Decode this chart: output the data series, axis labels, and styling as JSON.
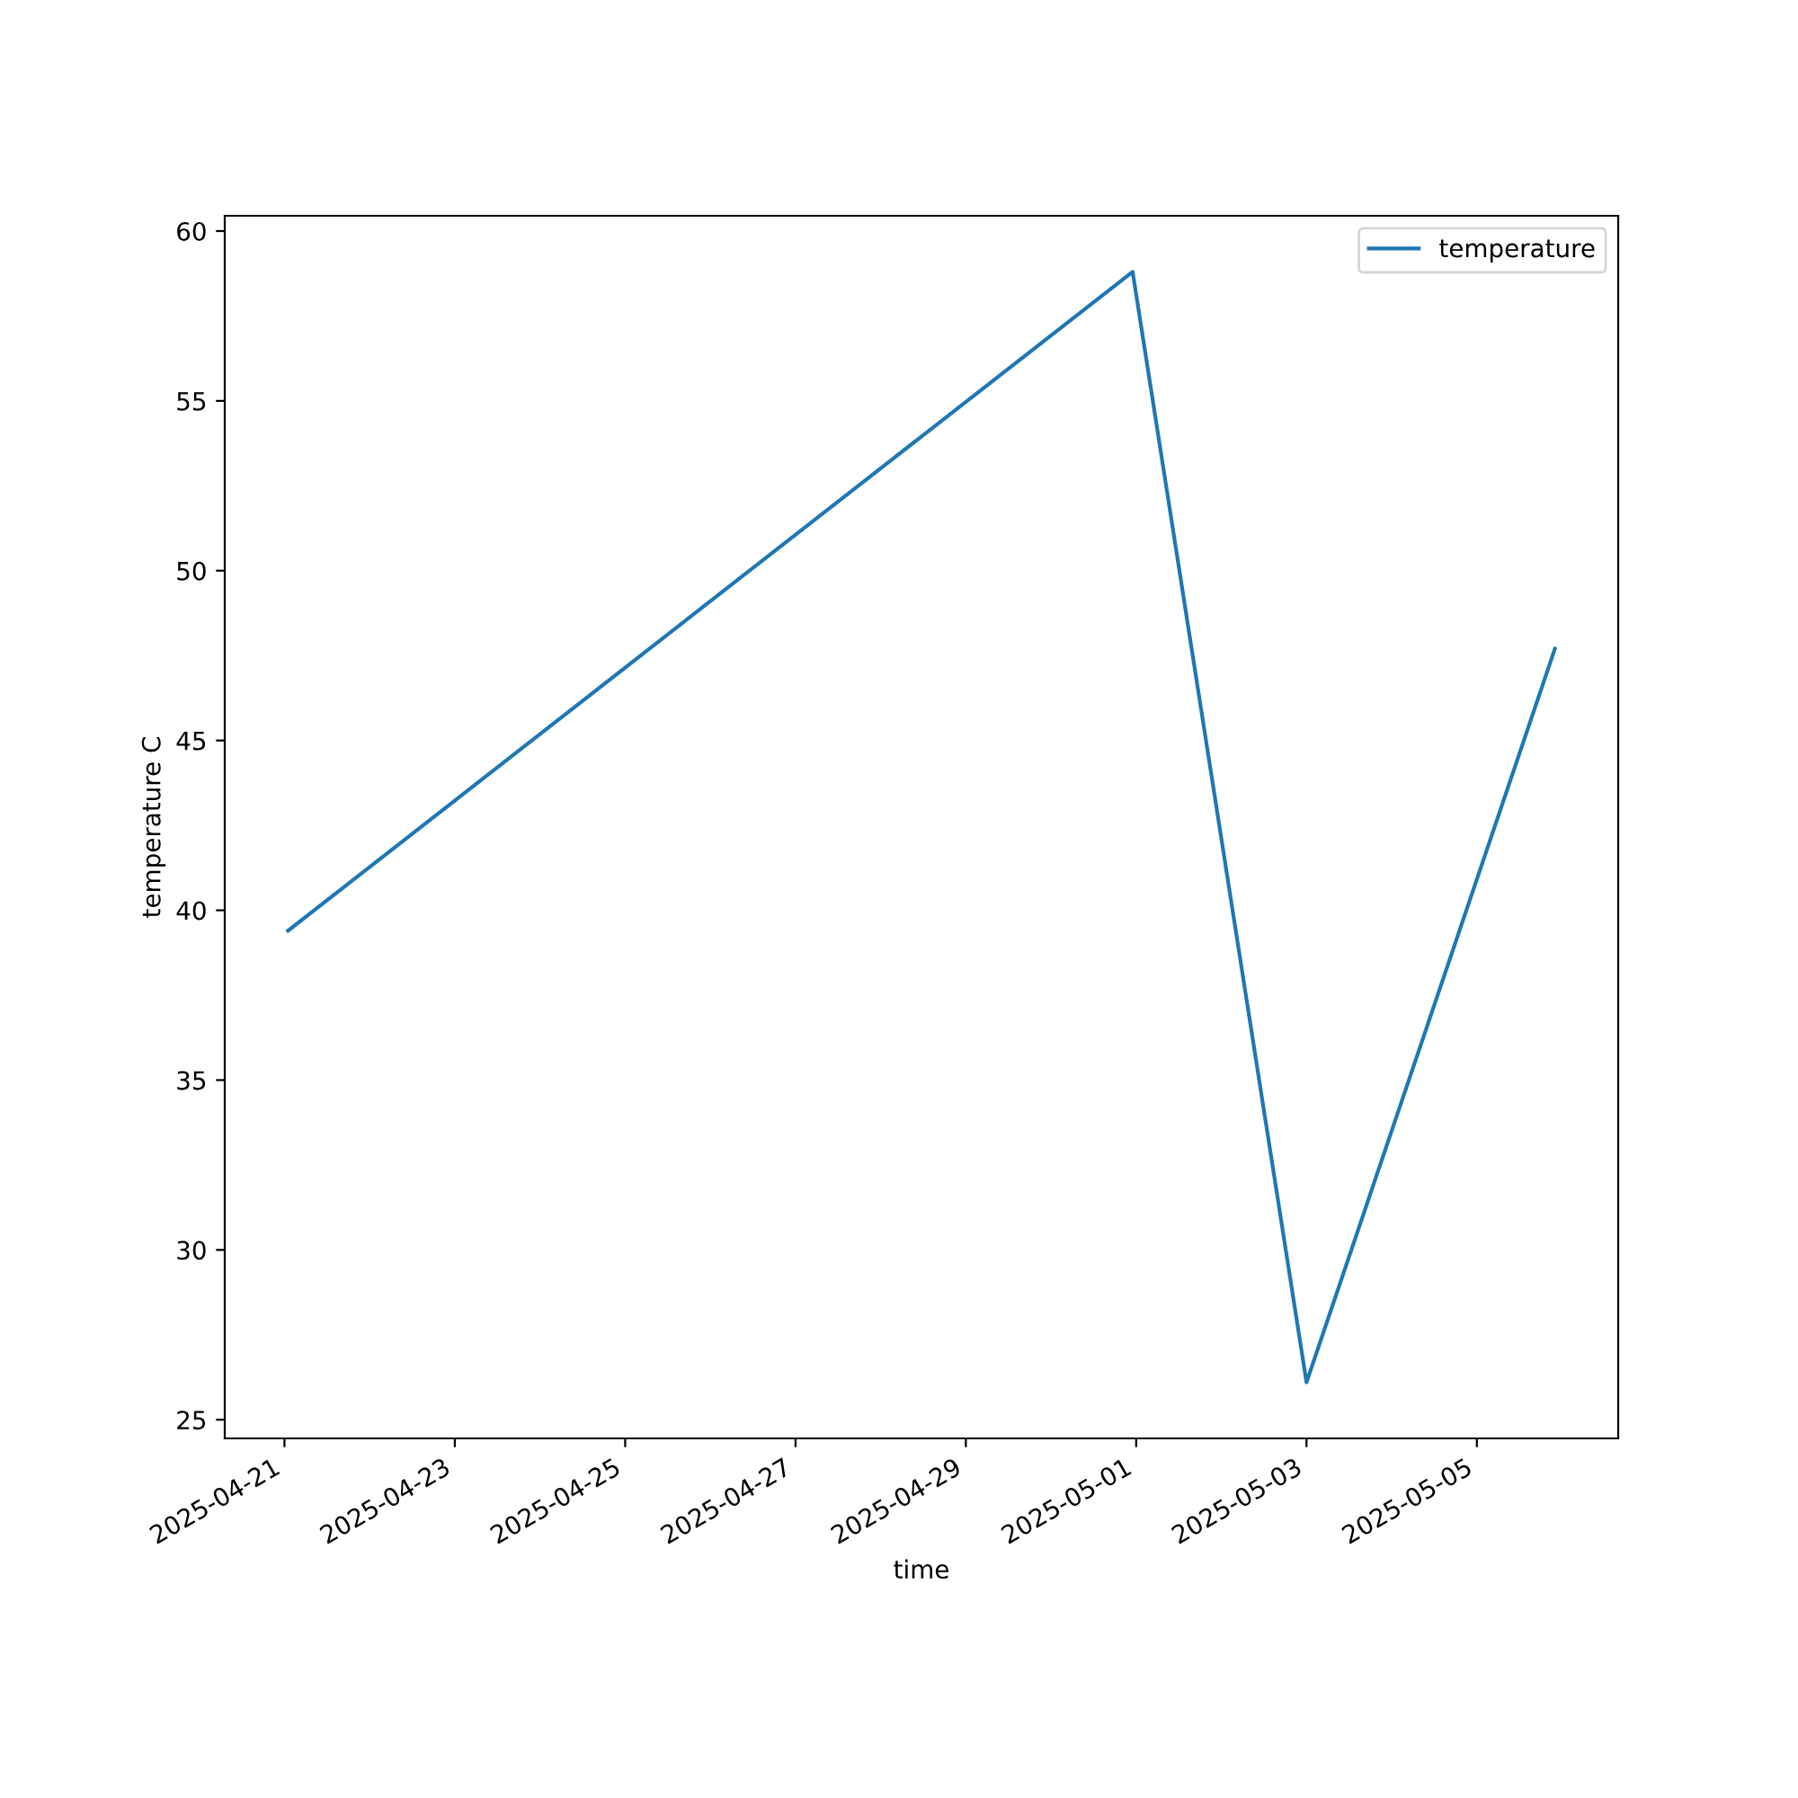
{
  "chart_data": {
    "type": "line",
    "xlabel": "time",
    "ylabel": "temperature C",
    "x": [
      "2025-04-21T01:00",
      "2025-04-30T23:00",
      "2025-05-03T00:00",
      "2025-05-05T22:00"
    ],
    "series": [
      {
        "name": "temperature",
        "color": "#1f77b4",
        "values": [
          39.4,
          58.8,
          26.1,
          47.7
        ]
      }
    ],
    "xlim": [
      "2025-04-20T07:10",
      "2025-05-06T15:50"
    ],
    "xticks": [
      {
        "value": "2025-04-21",
        "label": "2025-04-21"
      },
      {
        "value": "2025-04-23",
        "label": "2025-04-23"
      },
      {
        "value": "2025-04-25",
        "label": "2025-04-25"
      },
      {
        "value": "2025-04-27",
        "label": "2025-04-27"
      },
      {
        "value": "2025-04-29",
        "label": "2025-04-29"
      },
      {
        "value": "2025-05-01",
        "label": "2025-05-01"
      },
      {
        "value": "2025-05-03",
        "label": "2025-05-03"
      },
      {
        "value": "2025-05-05",
        "label": "2025-05-05"
      }
    ],
    "ylim": [
      24.45,
      60.45
    ],
    "yticks": [
      25,
      30,
      35,
      40,
      45,
      50,
      55,
      60
    ],
    "legend": "top right",
    "grid": false,
    "marker": "none",
    "line_style": "solid"
  }
}
